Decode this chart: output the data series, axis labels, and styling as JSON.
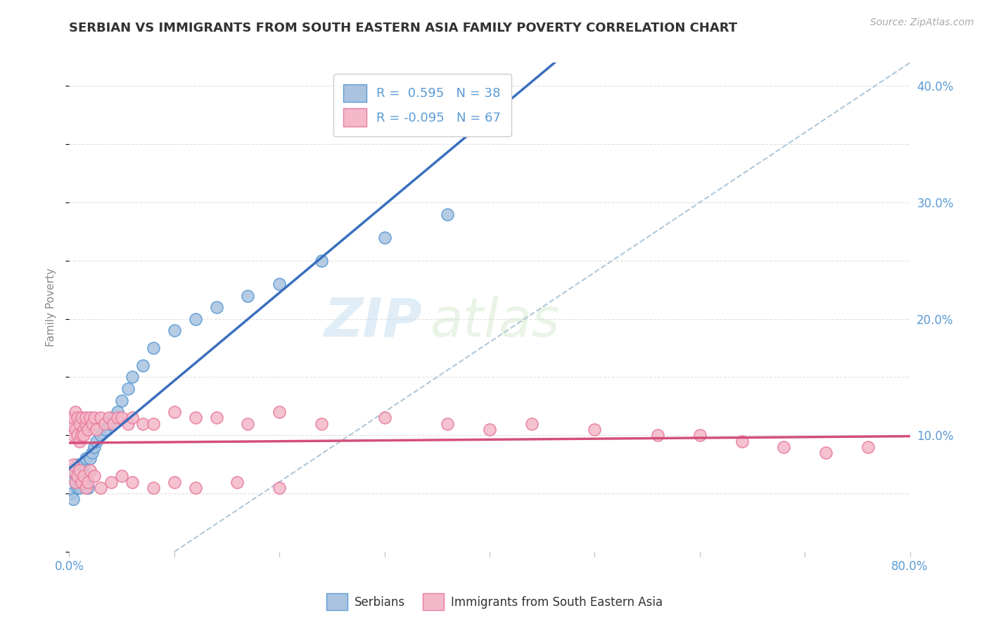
{
  "title": "SERBIAN VS IMMIGRANTS FROM SOUTH EASTERN ASIA FAMILY POVERTY CORRELATION CHART",
  "source_text": "Source: ZipAtlas.com",
  "ylabel": "Family Poverty",
  "xlabel": "",
  "xlim": [
    0.0,
    0.4
  ],
  "ylim": [
    0.0,
    0.42
  ],
  "xticks": [
    0.0,
    0.05,
    0.1,
    0.15,
    0.2,
    0.25,
    0.3,
    0.35,
    0.4
  ],
  "yticks_right": [
    0.0,
    0.1,
    0.2,
    0.3,
    0.4
  ],
  "yticklabels_right": [
    "",
    "10.0%",
    "20.0%",
    "30.0%",
    "40.0%"
  ],
  "title_color": "#333333",
  "source_color": "#aaaaaa",
  "blue_color": "#aac4e0",
  "blue_edge_color": "#5b9bd5",
  "pink_color": "#f4b8c8",
  "pink_edge_color": "#e87ca0",
  "blue_line_color": "#3a6fbe",
  "pink_line_color": "#d44f7a",
  "ref_line_color": "#b0c8d8",
  "R_blue": 0.595,
  "N_blue": 38,
  "R_pink": -0.095,
  "N_pink": 67,
  "legend_label_blue": "Serbians",
  "legend_label_pink": "Immigrants from South Eastern Asia",
  "blue_x": [
    0.001,
    0.002,
    0.003,
    0.003,
    0.003,
    0.004,
    0.004,
    0.005,
    0.005,
    0.006,
    0.006,
    0.007,
    0.007,
    0.008,
    0.008,
    0.009,
    0.01,
    0.011,
    0.012,
    0.013,
    0.015,
    0.017,
    0.019,
    0.021,
    0.023,
    0.025,
    0.028,
    0.03,
    0.035,
    0.04,
    0.05,
    0.06,
    0.07,
    0.085,
    0.1,
    0.12,
    0.15,
    0.18
  ],
  "blue_y": [
    0.05,
    0.045,
    0.065,
    0.07,
    0.06,
    0.055,
    0.075,
    0.06,
    0.055,
    0.065,
    0.07,
    0.06,
    0.075,
    0.065,
    0.08,
    0.055,
    0.08,
    0.085,
    0.09,
    0.095,
    0.1,
    0.105,
    0.11,
    0.115,
    0.12,
    0.13,
    0.14,
    0.15,
    0.16,
    0.175,
    0.19,
    0.2,
    0.21,
    0.22,
    0.23,
    0.25,
    0.27,
    0.29
  ],
  "pink_x": [
    0.001,
    0.002,
    0.002,
    0.003,
    0.003,
    0.004,
    0.004,
    0.005,
    0.005,
    0.006,
    0.006,
    0.007,
    0.007,
    0.008,
    0.008,
    0.009,
    0.01,
    0.011,
    0.012,
    0.013,
    0.015,
    0.017,
    0.019,
    0.021,
    0.023,
    0.025,
    0.028,
    0.03,
    0.035,
    0.04,
    0.05,
    0.06,
    0.07,
    0.085,
    0.1,
    0.12,
    0.15,
    0.18,
    0.2,
    0.22,
    0.25,
    0.28,
    0.3,
    0.32,
    0.34,
    0.36,
    0.38,
    0.001,
    0.002,
    0.003,
    0.004,
    0.005,
    0.006,
    0.007,
    0.008,
    0.009,
    0.01,
    0.012,
    0.015,
    0.02,
    0.025,
    0.03,
    0.04,
    0.05,
    0.06,
    0.08,
    0.1
  ],
  "pink_y": [
    0.11,
    0.1,
    0.115,
    0.105,
    0.12,
    0.1,
    0.115,
    0.095,
    0.11,
    0.1,
    0.115,
    0.105,
    0.1,
    0.11,
    0.115,
    0.105,
    0.115,
    0.11,
    0.115,
    0.105,
    0.115,
    0.11,
    0.115,
    0.11,
    0.115,
    0.115,
    0.11,
    0.115,
    0.11,
    0.11,
    0.12,
    0.115,
    0.115,
    0.11,
    0.12,
    0.11,
    0.115,
    0.11,
    0.105,
    0.11,
    0.105,
    0.1,
    0.1,
    0.095,
    0.09,
    0.085,
    0.09,
    0.07,
    0.075,
    0.06,
    0.065,
    0.07,
    0.06,
    0.065,
    0.055,
    0.06,
    0.07,
    0.065,
    0.055,
    0.06,
    0.065,
    0.06,
    0.055,
    0.06,
    0.055,
    0.06,
    0.055
  ],
  "watermark_text1": "ZIP",
  "watermark_text2": "atlas",
  "background_color": "#ffffff",
  "grid_color": "#dddddd"
}
